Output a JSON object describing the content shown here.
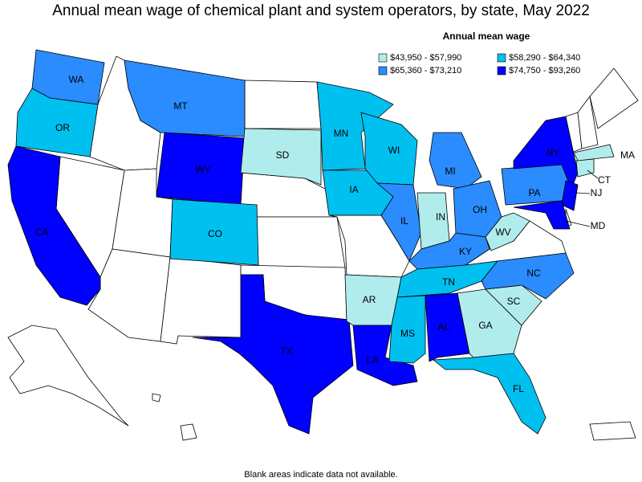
{
  "title": "Annual mean wage of chemical plant and system operators, by state, May 2022",
  "legend": {
    "title": "Annual mean wage",
    "items": [
      {
        "label": "$43,950 - $57,990",
        "color": "#b0ecec"
      },
      {
        "label": "$58,290 - $64,340",
        "color": "#00c0f0"
      },
      {
        "label": "$65,360 - $73,210",
        "color": "#2a8cff"
      },
      {
        "label": "$74,750 - $93,260",
        "color": "#0000ff"
      }
    ]
  },
  "states": [
    {
      "label": "WA",
      "color": "#2a8cff"
    },
    {
      "label": "OR",
      "color": "#00c0f0"
    },
    {
      "label": "CA",
      "color": "#0000ff"
    },
    {
      "label": "MT",
      "color": "#2a8cff"
    },
    {
      "label": "WY",
      "color": "#0000ff"
    },
    {
      "label": "SD",
      "color": "#b0ecec"
    },
    {
      "label": "CO",
      "color": "#00c0f0"
    },
    {
      "label": "TX",
      "color": "#0000ff"
    },
    {
      "label": "MN",
      "color": "#00c0f0"
    },
    {
      "label": "IA",
      "color": "#00c0f0"
    },
    {
      "label": "WI",
      "color": "#00c0f0"
    },
    {
      "label": "IL",
      "color": "#2a8cff"
    },
    {
      "label": "MI",
      "color": "#2a8cff"
    },
    {
      "label": "IN",
      "color": "#b0ecec"
    },
    {
      "label": "OH",
      "color": "#2a8cff"
    },
    {
      "label": "KY",
      "color": "#2a8cff"
    },
    {
      "label": "TN",
      "color": "#00c0f0"
    },
    {
      "label": "AR",
      "color": "#b0ecec"
    },
    {
      "label": "LA",
      "color": "#0000ff"
    },
    {
      "label": "MS",
      "color": "#00c0f0"
    },
    {
      "label": "AL",
      "color": "#0000ff"
    },
    {
      "label": "GA",
      "color": "#b0ecec"
    },
    {
      "label": "SC",
      "color": "#b0ecec"
    },
    {
      "label": "NC",
      "color": "#2a8cff"
    },
    {
      "label": "FL",
      "color": "#00c0f0"
    },
    {
      "label": "WV",
      "color": "#b0ecec"
    },
    {
      "label": "PA",
      "color": "#2a8cff"
    },
    {
      "label": "NY",
      "color": "#0000ff"
    },
    {
      "label": "NJ",
      "color": "#0000ff"
    },
    {
      "label": "MD",
      "color": "#0000ff"
    },
    {
      "label": "CT",
      "color": "#b0ecec"
    },
    {
      "label": "MA",
      "color": "#b0ecec"
    }
  ],
  "footnote": "Blank areas indicate data not available."
}
